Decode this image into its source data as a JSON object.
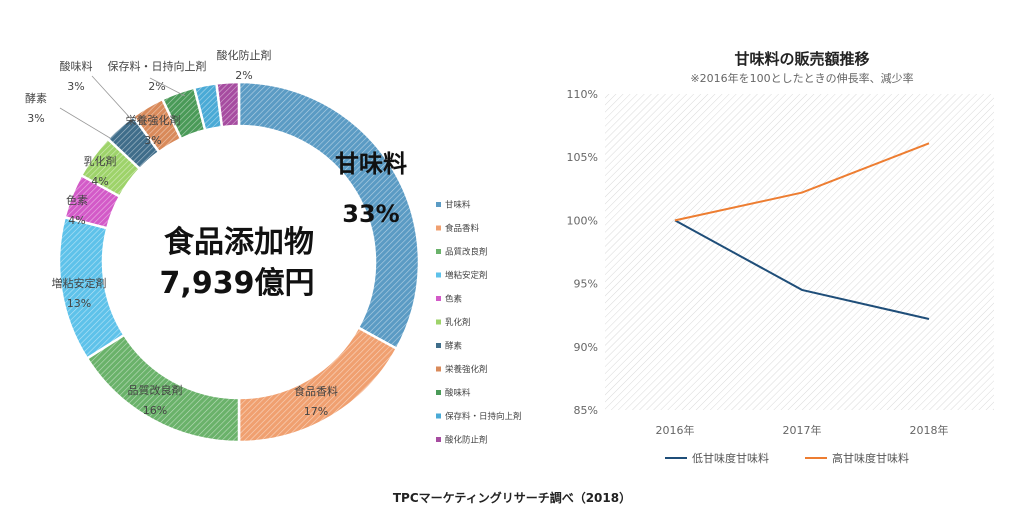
{
  "source": "TPCマーケティングリサーチ調べ（2018）",
  "chart_data": [
    {
      "type": "pie",
      "variant": "donut",
      "center_title": "食品添加物",
      "center_value": "7,939億円",
      "callout": {
        "label": "甘味料",
        "value": "33%"
      },
      "legend_position": "right",
      "slices": [
        {
          "label": "甘味料",
          "value": 33,
          "percent_label": "33%",
          "color": "#5b9bc4"
        },
        {
          "label": "食品香料",
          "value": 17,
          "percent_label": "17%",
          "color": "#f0a070"
        },
        {
          "label": "品質改良剤",
          "value": 16,
          "percent_label": "16%",
          "color": "#6ab26a"
        },
        {
          "label": "増粘安定剤",
          "value": 13,
          "percent_label": "13%",
          "color": "#5ec2ea"
        },
        {
          "label": "色素",
          "value": 4,
          "percent_label": "4%",
          "color": "#d35ac8"
        },
        {
          "label": "乳化剤",
          "value": 4,
          "percent_label": "4%",
          "color": "#9ed36a"
        },
        {
          "label": "酵素",
          "value": 3,
          "percent_label": "3%",
          "color": "#3f6d8a"
        },
        {
          "label": "栄養強化剤",
          "value": 3,
          "percent_label": "3%",
          "color": "#d98a5a"
        },
        {
          "label": "酸味料",
          "value": 3,
          "percent_label": "3%",
          "color": "#4a9a58"
        },
        {
          "label": "保存料・日持向上剤",
          "value": 2,
          "percent_label": "2%",
          "color": "#4aaad6"
        },
        {
          "label": "酸化防止剤",
          "value": 2,
          "percent_label": "2%",
          "color": "#a64ca0"
        }
      ]
    },
    {
      "type": "line",
      "title": "甘味料の販売額推移",
      "subtitle": "※2016年を100としたときの伸長率、減少率",
      "x": [
        "2016年",
        "2017年",
        "2018年"
      ],
      "ylim": [
        85,
        110
      ],
      "yticks": [
        "85%",
        "90%",
        "95%",
        "100%",
        "105%",
        "110%"
      ],
      "ytick_values": [
        85,
        90,
        95,
        100,
        105,
        110
      ],
      "legend_position": "bottom",
      "series": [
        {
          "name": "低甘味度甘味料",
          "values": [
            100,
            94.5,
            92.2
          ],
          "color": "#1f4e79"
        },
        {
          "name": "高甘味度甘味料",
          "values": [
            100,
            102.2,
            106.1
          ],
          "color": "#ed7d31"
        }
      ]
    }
  ]
}
